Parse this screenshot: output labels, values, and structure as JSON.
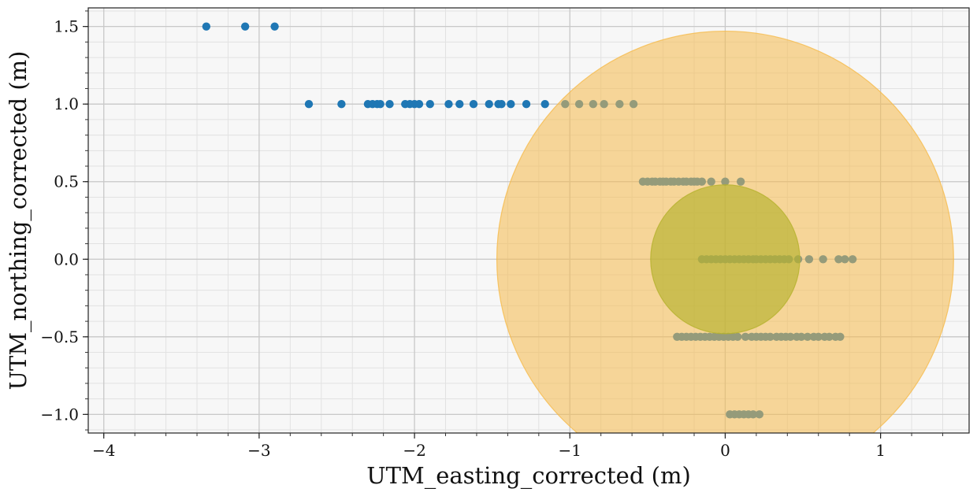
{
  "chart_data": {
    "type": "scatter",
    "title": "",
    "xlabel": "UTM_easting_corrected (m)",
    "ylabel": "UTM_northing_corrected (m)",
    "xlim": [
      -4.1,
      1.57
    ],
    "ylim": [
      -1.12,
      1.62
    ],
    "x_ticks": [
      -4,
      -3,
      -2,
      -1,
      0,
      1
    ],
    "x_tick_labels": [
      "−4",
      "−3",
      "−2",
      "−1",
      "0",
      "1"
    ],
    "y_ticks": [
      1.5,
      1.0,
      0.5,
      0.0,
      -0.5,
      -1.0
    ],
    "y_tick_labels": [
      "1.5",
      "1.0",
      "0.5",
      "0.0",
      "−0.5",
      "−1.0"
    ],
    "grid": true,
    "minor_grid": true,
    "background_color": "#f7f7f7",
    "point_color": "#1f77b4",
    "circles": [
      {
        "center": [
          0,
          0
        ],
        "radius": 1.47,
        "color": "#f6ba4a",
        "opacity": 0.55
      },
      {
        "center": [
          0,
          0
        ],
        "radius": 0.48,
        "color": "#b5b22d",
        "opacity": 0.65
      }
    ],
    "points": {
      "y_1_5": {
        "y": 1.5,
        "x": [
          -3.34,
          -3.09,
          -2.9
        ]
      },
      "y_1_0": {
        "y": 1.0,
        "x": [
          -2.68,
          -2.47,
          -2.3,
          -2.27,
          -2.24,
          -2.22,
          -2.16,
          -2.06,
          -2.03,
          -2.0,
          -1.97,
          -1.9,
          -1.78,
          -1.71,
          -1.62,
          -1.52,
          -1.46,
          -1.44,
          -1.38,
          -1.28,
          -1.16,
          -1.03,
          -0.94,
          -0.85,
          -0.78,
          -0.68,
          -0.59
        ]
      },
      "y_0_5": {
        "y": 0.5,
        "x": [
          -0.53,
          -0.5,
          -0.47,
          -0.45,
          -0.42,
          -0.4,
          -0.38,
          -0.35,
          -0.33,
          -0.3,
          -0.27,
          -0.25,
          -0.22,
          -0.2,
          -0.18,
          -0.15,
          -0.09,
          0.0,
          0.1
        ]
      },
      "y_0_0": {
        "y": 0.0,
        "x": [
          -0.15,
          -0.12,
          -0.09,
          -0.06,
          -0.03,
          0.0,
          0.03,
          0.06,
          0.09,
          0.12,
          0.15,
          0.18,
          0.2,
          0.23,
          0.26,
          0.29,
          0.32,
          0.35,
          0.38,
          0.41,
          0.47,
          0.54,
          0.63,
          0.73,
          0.77,
          0.82
        ]
      },
      "y_neg_0_5": {
        "y": -0.5,
        "x": [
          -0.31,
          -0.28,
          -0.25,
          -0.22,
          -0.19,
          -0.16,
          -0.13,
          -0.1,
          -0.07,
          -0.04,
          -0.01,
          0.02,
          0.05,
          0.08,
          0.13,
          0.17,
          0.2,
          0.23,
          0.26,
          0.29,
          0.33,
          0.36,
          0.39,
          0.42,
          0.46,
          0.49,
          0.53,
          0.57,
          0.6,
          0.64,
          0.67,
          0.71,
          0.74
        ]
      },
      "y_neg_1_0": {
        "y": -1.0,
        "x": [
          0.03,
          0.06,
          0.09,
          0.12,
          0.15,
          0.18,
          0.22
        ]
      }
    }
  }
}
